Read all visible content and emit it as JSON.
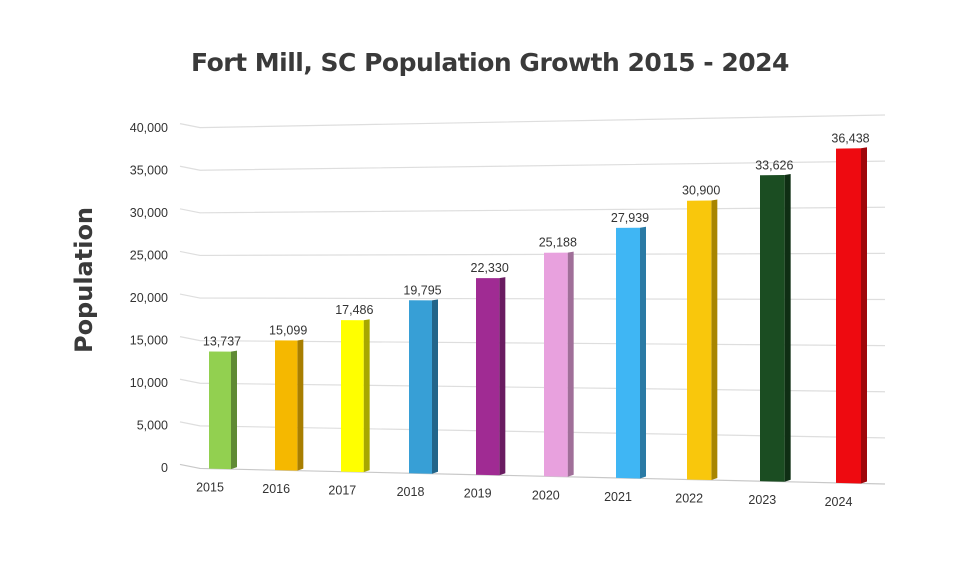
{
  "chart_data": {
    "type": "bar",
    "title": "Fort Mill, SC Population Growth 2015 - 2024",
    "xlabel": "",
    "ylabel": "Population",
    "categories": [
      "2015",
      "2016",
      "2017",
      "2018",
      "2019",
      "2020",
      "2021",
      "2022",
      "2023",
      "2024"
    ],
    "values": [
      13737,
      15099,
      17486,
      19795,
      22330,
      25188,
      27939,
      30900,
      33626,
      36438
    ],
    "data_labels": [
      "13,737",
      "15,099",
      "17,486",
      "19,795",
      "22,330",
      "25,188",
      "27,939",
      "30,900",
      "33,626",
      "36,438"
    ],
    "colors": [
      "#92d050",
      "#f5b800",
      "#ffff00",
      "#379fd6",
      "#a02b93",
      "#e8a1de",
      "#3fb6f4",
      "#f9c70c",
      "#1b4d22",
      "#ee0a10"
    ],
    "side_colors": [
      "#5f8a34",
      "#a87e00",
      "#a8a800",
      "#22658a",
      "#6a1c61",
      "#a06f99",
      "#2a7aa5",
      "#a88500",
      "#0f2e14",
      "#9f070b"
    ],
    "yticks": [
      "0",
      "5,000",
      "10,000",
      "15,000",
      "20,000",
      "25,000",
      "30,000",
      "35,000",
      "40,000"
    ],
    "ylim": [
      0,
      40000
    ],
    "ytick_step": 5000,
    "grid": true,
    "style": "3d-perspective"
  }
}
